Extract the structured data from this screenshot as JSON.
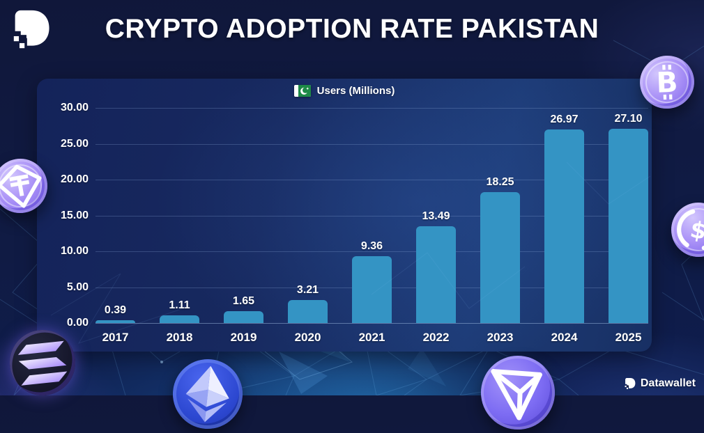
{
  "header": {
    "title": "CRYPTO ADOPTION RATE PAKISTAN"
  },
  "legend": {
    "label": "Users (Millions)"
  },
  "chart_data": {
    "type": "bar",
    "title": "CRYPTO ADOPTION RATE PAKISTAN",
    "legend": "Users (Millions)",
    "legend_position": "top-center",
    "categories": [
      "2017",
      "2018",
      "2019",
      "2020",
      "2021",
      "2022",
      "2023",
      "2024",
      "2025"
    ],
    "values": [
      0.39,
      1.11,
      1.65,
      3.21,
      9.36,
      13.49,
      18.25,
      26.97,
      27.1
    ],
    "data_labels": [
      "0.39",
      "1.11",
      "1.65",
      "3.21",
      "9.36",
      "13.49",
      "18.25",
      "26.97",
      "27.10"
    ],
    "xlabel": "",
    "ylabel": "",
    "ylim": [
      0,
      30
    ],
    "yticks": [
      0,
      5,
      10,
      15,
      20,
      25,
      30
    ],
    "ytick_labels": [
      "0.00",
      "5.00",
      "10.00",
      "15.00",
      "20.00",
      "25.00",
      "30.00"
    ],
    "grid": true,
    "bar_color": "#3494c4"
  },
  "footer": {
    "brand": "Datawallet"
  },
  "icons": {
    "logo": "datawallet-logo-icon",
    "flag": "pakistan-flag-icon",
    "coins": [
      "bitcoin-coin-icon",
      "tether-coin-icon",
      "usdc-coin-icon",
      "solana-coin-icon",
      "ethereum-coin-icon",
      "tron-coin-icon"
    ]
  },
  "colors": {
    "background": "#101a42",
    "panel_start": "#14235a",
    "panel_end": "#1d3b76",
    "bar": "#3494c4",
    "accent_purple": "#9b87f5",
    "text": "#ffffff"
  }
}
